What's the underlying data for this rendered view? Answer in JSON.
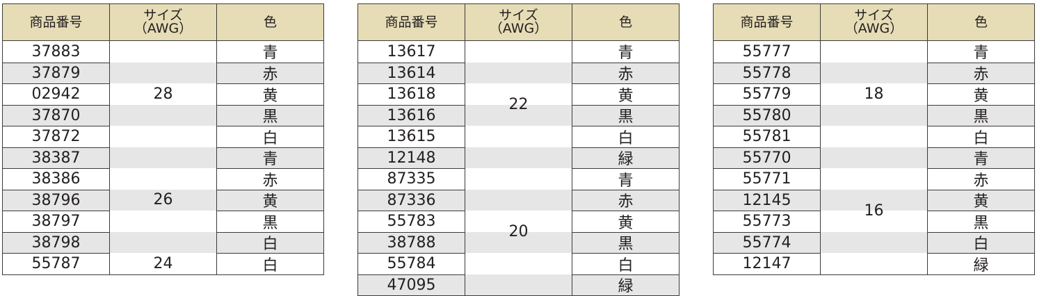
{
  "headers": {
    "id": "商品番号",
    "size_line1": "サイズ",
    "size_line2": "（AWG）",
    "color": "色"
  },
  "colors": {
    "header_bg": "#e6dcb6",
    "stripe_bg": "#e6e6e6",
    "border": "#3a3a3a"
  },
  "tables": [
    {
      "rows": [
        {
          "id": "37883",
          "color": "青"
        },
        {
          "id": "37879",
          "color": "赤"
        },
        {
          "id": "02942",
          "color": "黄"
        },
        {
          "id": "37870",
          "color": "黒"
        },
        {
          "id": "37872",
          "color": "白"
        },
        {
          "id": "38387",
          "color": "青"
        },
        {
          "id": "38386",
          "color": "赤"
        },
        {
          "id": "38796",
          "color": "黄"
        },
        {
          "id": "38797",
          "color": "黒"
        },
        {
          "id": "38798",
          "color": "白"
        },
        {
          "id": "55787",
          "color": "白"
        }
      ],
      "groups": [
        {
          "size": "28",
          "start": 0,
          "count": 5
        },
        {
          "size": "26",
          "start": 5,
          "count": 5
        },
        {
          "size": "24",
          "start": 10,
          "count": 1
        }
      ]
    },
    {
      "rows": [
        {
          "id": "13617",
          "color": "青"
        },
        {
          "id": "13614",
          "color": "赤"
        },
        {
          "id": "13618",
          "color": "黄"
        },
        {
          "id": "13616",
          "color": "黒"
        },
        {
          "id": "13615",
          "color": "白"
        },
        {
          "id": "12148",
          "color": "緑"
        },
        {
          "id": "87335",
          "color": "青"
        },
        {
          "id": "87336",
          "color": "赤"
        },
        {
          "id": "55783",
          "color": "黄"
        },
        {
          "id": "38788",
          "color": "黒"
        },
        {
          "id": "55784",
          "color": "白"
        },
        {
          "id": "47095",
          "color": "緑"
        }
      ],
      "groups": [
        {
          "size": "22",
          "start": 0,
          "count": 6
        },
        {
          "size": "20",
          "start": 6,
          "count": 6
        }
      ]
    },
    {
      "rows": [
        {
          "id": "55777",
          "color": "青"
        },
        {
          "id": "55778",
          "color": "赤"
        },
        {
          "id": "55779",
          "color": "黄"
        },
        {
          "id": "55780",
          "color": "黒"
        },
        {
          "id": "55781",
          "color": "白"
        },
        {
          "id": "55770",
          "color": "青"
        },
        {
          "id": "55771",
          "color": "赤"
        },
        {
          "id": "12145",
          "color": "黄"
        },
        {
          "id": "55773",
          "color": "黒"
        },
        {
          "id": "55774",
          "color": "白"
        },
        {
          "id": "12147",
          "color": "緑"
        }
      ],
      "groups": [
        {
          "size": "18",
          "start": 0,
          "count": 5
        },
        {
          "size": "16",
          "start": 5,
          "count": 6
        }
      ]
    }
  ]
}
